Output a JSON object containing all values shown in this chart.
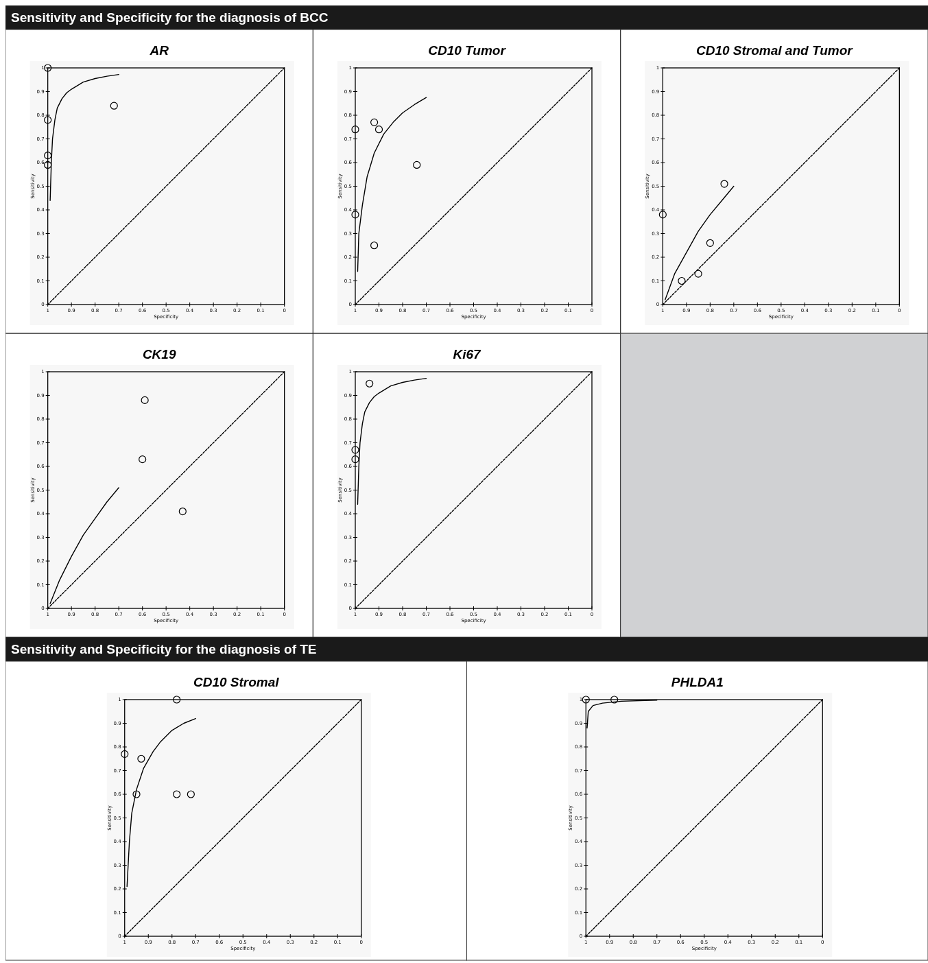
{
  "chart_data": [
    {
      "type": "scatter",
      "subtitle": "Sensitivity and Specificity for the diagnosis of BCC",
      "title": "AR",
      "xlabel": "Specificity",
      "ylabel": "Sensitivity",
      "xlim": [
        1,
        0
      ],
      "ylim": [
        0,
        1
      ],
      "xticks": [
        1,
        0.9,
        0.8,
        0.7,
        0.6,
        0.5,
        0.4,
        0.3,
        0.2,
        0.1,
        0
      ],
      "yticks": [
        0,
        0.1,
        0.2,
        0.3,
        0.4,
        0.5,
        0.6,
        0.7,
        0.8,
        0.9,
        1
      ],
      "series": [
        {
          "marker": "circle",
          "color": "#000000",
          "x": [
            1,
            1,
            1,
            1,
            0.72
          ],
          "values": [
            1,
            0.78,
            0.63,
            0.59,
            0.84
          ]
        },
        {
          "type": "line",
          "line_style": "solid",
          "color": "#000000",
          "x": [
            0.99,
            0.985,
            0.98,
            0.97,
            0.96,
            0.94,
            0.92,
            0.9,
            0.85,
            0.8,
            0.75,
            0.7
          ],
          "values": [
            0.44,
            0.6,
            0.7,
            0.78,
            0.83,
            0.87,
            0.895,
            0.91,
            0.94,
            0.955,
            0.965,
            0.972
          ]
        },
        {
          "type": "line",
          "line_style": "dashed",
          "color": "#000000",
          "x": [
            1,
            0
          ],
          "values": [
            0,
            1
          ]
        }
      ]
    },
    {
      "type": "scatter",
      "title": "CD10 Tumor",
      "xlabel": "Specificity",
      "ylabel": "Sensitivity",
      "xlim": [
        1,
        0
      ],
      "ylim": [
        0,
        1
      ],
      "xticks": [
        1,
        0.9,
        0.8,
        0.7,
        0.6,
        0.5,
        0.4,
        0.3,
        0.2,
        0.1,
        0
      ],
      "yticks": [
        0,
        0.1,
        0.2,
        0.3,
        0.4,
        0.5,
        0.6,
        0.7,
        0.8,
        0.9,
        1
      ],
      "series": [
        {
          "marker": "circle",
          "color": "#000000",
          "x": [
            1,
            0.92,
            0.9,
            0.74,
            1,
            0.92
          ],
          "values": [
            0.74,
            0.77,
            0.74,
            0.59,
            0.38,
            0.25
          ]
        },
        {
          "type": "line",
          "line_style": "solid",
          "color": "#000000",
          "x": [
            0.99,
            0.985,
            0.97,
            0.95,
            0.92,
            0.88,
            0.84,
            0.8,
            0.75,
            0.7
          ],
          "values": [
            0.14,
            0.3,
            0.42,
            0.54,
            0.64,
            0.72,
            0.77,
            0.81,
            0.845,
            0.875
          ]
        },
        {
          "type": "line",
          "line_style": "dashed",
          "color": "#000000",
          "x": [
            1,
            0
          ],
          "values": [
            0,
            1
          ]
        }
      ]
    },
    {
      "type": "scatter",
      "title": "CD10 Stromal and Tumor",
      "xlabel": "Specificity",
      "ylabel": "Sensitivity",
      "xlim": [
        1,
        0
      ],
      "ylim": [
        0,
        1
      ],
      "xticks": [
        1,
        0.9,
        0.8,
        0.7,
        0.6,
        0.5,
        0.4,
        0.3,
        0.2,
        0.1,
        0
      ],
      "yticks": [
        0,
        0.1,
        0.2,
        0.3,
        0.4,
        0.5,
        0.6,
        0.7,
        0.8,
        0.9,
        1
      ],
      "series": [
        {
          "marker": "circle",
          "color": "#000000",
          "x": [
            1,
            0.92,
            0.85,
            0.8,
            0.74
          ],
          "values": [
            0.38,
            0.1,
            0.13,
            0.26,
            0.51
          ]
        },
        {
          "type": "line",
          "line_style": "solid",
          "color": "#000000",
          "x": [
            0.99,
            0.95,
            0.9,
            0.85,
            0.8,
            0.75,
            0.7
          ],
          "values": [
            0.02,
            0.13,
            0.22,
            0.31,
            0.38,
            0.44,
            0.5
          ]
        },
        {
          "type": "line",
          "line_style": "dashed",
          "color": "#000000",
          "x": [
            1,
            0
          ],
          "values": [
            0,
            1
          ]
        }
      ]
    },
    {
      "type": "scatter",
      "title": "CK19",
      "xlabel": "Specificity",
      "ylabel": "Sensitivity",
      "xlim": [
        1,
        0
      ],
      "ylim": [
        0,
        1
      ],
      "xticks": [
        1,
        0.9,
        0.8,
        0.7,
        0.6,
        0.5,
        0.4,
        0.3,
        0.2,
        0.1,
        0
      ],
      "yticks": [
        0,
        0.1,
        0.2,
        0.3,
        0.4,
        0.5,
        0.6,
        0.7,
        0.8,
        0.9,
        1
      ],
      "series": [
        {
          "marker": "circle",
          "color": "#000000",
          "x": [
            0.59,
            0.6,
            0.43
          ],
          "values": [
            0.88,
            0.63,
            0.41
          ]
        },
        {
          "type": "line",
          "line_style": "solid",
          "color": "#000000",
          "x": [
            0.99,
            0.95,
            0.9,
            0.85,
            0.8,
            0.75,
            0.7
          ],
          "values": [
            0.02,
            0.12,
            0.22,
            0.31,
            0.38,
            0.45,
            0.51
          ]
        },
        {
          "type": "line",
          "line_style": "dashed",
          "color": "#000000",
          "x": [
            1,
            0
          ],
          "values": [
            0,
            1
          ]
        }
      ]
    },
    {
      "type": "scatter",
      "title": "Ki67",
      "xlabel": "Specificity",
      "ylabel": "Sensitivity",
      "xlim": [
        1,
        0
      ],
      "ylim": [
        0,
        1
      ],
      "xticks": [
        1,
        0.9,
        0.8,
        0.7,
        0.6,
        0.5,
        0.4,
        0.3,
        0.2,
        0.1,
        0
      ],
      "yticks": [
        0,
        0.1,
        0.2,
        0.3,
        0.4,
        0.5,
        0.6,
        0.7,
        0.8,
        0.9,
        1
      ],
      "series": [
        {
          "marker": "circle",
          "color": "#000000",
          "x": [
            0.94,
            1,
            1
          ],
          "values": [
            0.95,
            0.67,
            0.63
          ]
        },
        {
          "type": "line",
          "line_style": "solid",
          "color": "#000000",
          "x": [
            0.99,
            0.985,
            0.98,
            0.97,
            0.96,
            0.94,
            0.92,
            0.9,
            0.85,
            0.8,
            0.75,
            0.7
          ],
          "values": [
            0.44,
            0.6,
            0.7,
            0.78,
            0.83,
            0.87,
            0.895,
            0.91,
            0.94,
            0.955,
            0.965,
            0.972
          ]
        },
        {
          "type": "line",
          "line_style": "dashed",
          "color": "#000000",
          "x": [
            1,
            0
          ],
          "values": [
            0,
            1
          ]
        }
      ]
    },
    {
      "type": "scatter",
      "subtitle": "Sensitivity and Specificity for the diagnosis of TE",
      "title": "CD10 Stromal",
      "xlabel": "Specificity",
      "ylabel": "Sensitivity",
      "xlim": [
        1,
        0
      ],
      "ylim": [
        0,
        1
      ],
      "xticks": [
        1,
        0.9,
        0.8,
        0.7,
        0.6,
        0.5,
        0.4,
        0.3,
        0.2,
        0.1,
        0
      ],
      "yticks": [
        0,
        0.1,
        0.2,
        0.3,
        0.4,
        0.5,
        0.6,
        0.7,
        0.8,
        0.9,
        1
      ],
      "series": [
        {
          "marker": "circle",
          "color": "#000000",
          "x": [
            0.78,
            1,
            0.93,
            0.95,
            0.78,
            0.72
          ],
          "values": [
            1,
            0.77,
            0.75,
            0.6,
            0.6,
            0.6
          ]
        },
        {
          "type": "line",
          "line_style": "solid",
          "color": "#000000",
          "x": [
            0.99,
            0.98,
            0.97,
            0.95,
            0.92,
            0.88,
            0.85,
            0.8,
            0.75,
            0.7
          ],
          "values": [
            0.21,
            0.4,
            0.52,
            0.62,
            0.71,
            0.78,
            0.82,
            0.87,
            0.9,
            0.92
          ]
        },
        {
          "type": "line",
          "line_style": "dashed",
          "color": "#000000",
          "x": [
            1,
            0
          ],
          "values": [
            0,
            1
          ]
        }
      ]
    },
    {
      "type": "scatter",
      "title": "PHLDA1",
      "xlabel": "Specificity",
      "ylabel": "Sensitivity",
      "xlim": [
        1,
        0
      ],
      "ylim": [
        0,
        1
      ],
      "xticks": [
        1,
        0.9,
        0.8,
        0.7,
        0.6,
        0.5,
        0.4,
        0.3,
        0.2,
        0.1,
        0
      ],
      "yticks": [
        0,
        0.1,
        0.2,
        0.3,
        0.4,
        0.5,
        0.6,
        0.7,
        0.8,
        0.9,
        1
      ],
      "series": [
        {
          "marker": "circle",
          "color": "#000000",
          "x": [
            1,
            0.88
          ],
          "values": [
            1,
            1
          ]
        },
        {
          "type": "line",
          "line_style": "solid",
          "color": "#000000",
          "x": [
            0.995,
            0.99,
            0.97,
            0.93,
            0.85,
            0.7
          ],
          "values": [
            0.88,
            0.95,
            0.975,
            0.985,
            0.993,
            0.998
          ]
        },
        {
          "type": "line",
          "line_style": "dashed",
          "color": "#000000",
          "x": [
            1,
            0
          ],
          "values": [
            0,
            1
          ]
        }
      ]
    }
  ]
}
